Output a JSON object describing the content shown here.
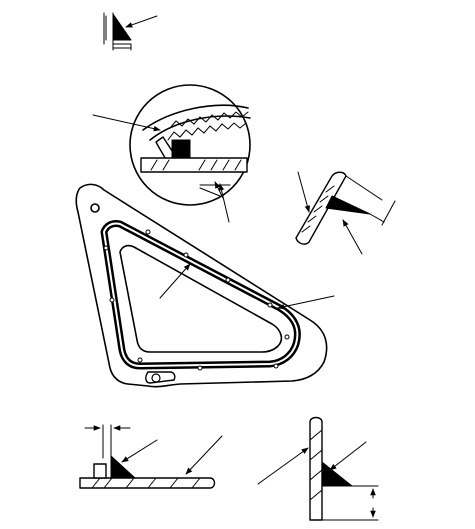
{
  "figure": {
    "labels": [],
    "callout_count": 13,
    "views": [
      "weld-bead-size-symbol",
      "seal-application-detail-magnified",
      "seal-bead-profile-angled",
      "quarter-window-glass-assembly",
      "horizontal-section-seal-bead",
      "vertical-section-seal-bead"
    ]
  }
}
